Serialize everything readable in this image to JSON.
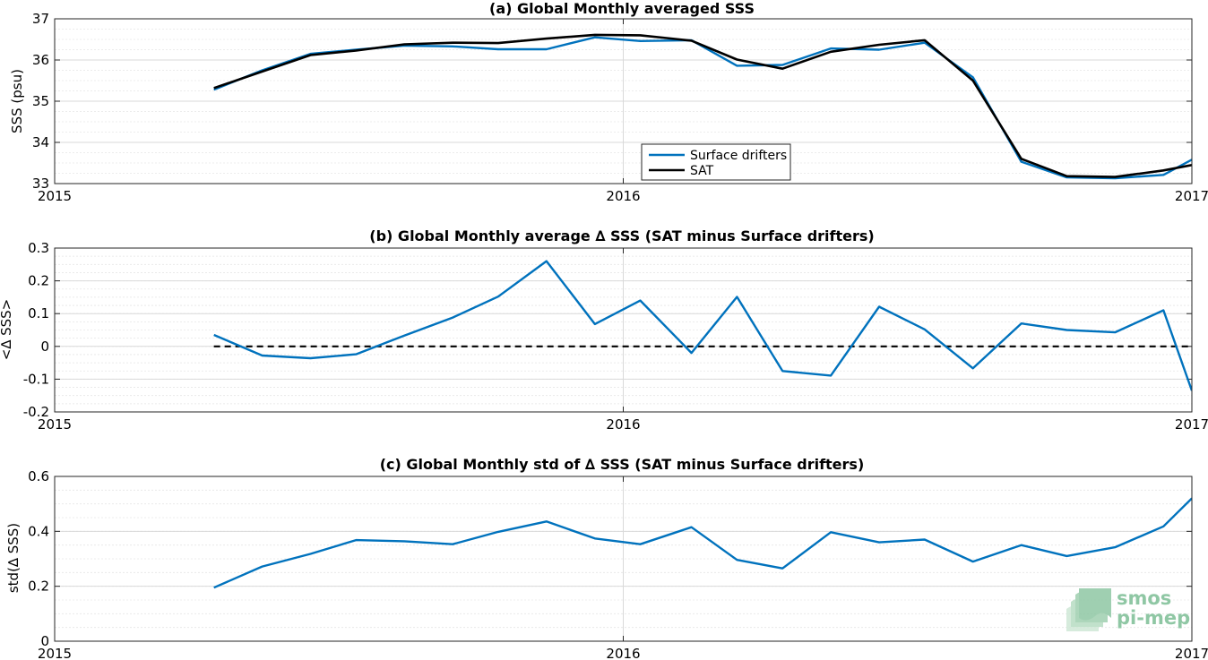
{
  "colors": {
    "series_blue": "#0072bd",
    "series_black": "#000000",
    "grid": "#d9d9d9",
    "axes": "#262626",
    "logo_green": "#8fc7a4"
  },
  "logo": {
    "line1": "smos",
    "line2": "pi-mep",
    "icon": "layered-wave-icon"
  },
  "chart_data": [
    {
      "type": "line",
      "title": "(a) Global Monthly averaged SSS",
      "ylabel": "SSS (psu)",
      "xlabel": "",
      "xlim": [
        2015,
        2017
      ],
      "ylim": [
        33,
        37
      ],
      "xticks": [
        {
          "v": 2015,
          "label": "2015"
        },
        {
          "v": 2016,
          "label": "2016"
        },
        {
          "v": 2017,
          "label": "2017"
        }
      ],
      "yticks": [
        33,
        34,
        35,
        36,
        37
      ],
      "grid": true,
      "legend": {
        "placement": "bottom-center",
        "entries": [
          "Surface drifters",
          "SAT"
        ]
      },
      "series": [
        {
          "name": "Surface drifters",
          "color": "#0072bd",
          "x": [
            2015.28,
            2015.365,
            2015.45,
            2015.53,
            2015.615,
            2015.7,
            2015.78,
            2015.865,
            2015.95,
            2016.03,
            2016.12,
            2016.2,
            2016.28,
            2016.365,
            2016.45,
            2016.53,
            2016.615,
            2016.7,
            2016.78,
            2016.865,
            2016.95,
            2017.0
          ],
          "y": [
            35.28,
            35.75,
            36.15,
            36.25,
            36.35,
            36.33,
            36.26,
            36.26,
            36.55,
            36.46,
            36.48,
            35.86,
            35.88,
            36.28,
            36.25,
            36.42,
            35.58,
            33.53,
            33.15,
            33.13,
            33.21,
            33.58
          ]
        },
        {
          "name": "SAT",
          "color": "#000000",
          "x": [
            2015.28,
            2015.365,
            2015.45,
            2015.53,
            2015.615,
            2015.7,
            2015.78,
            2015.865,
            2015.95,
            2016.03,
            2016.12,
            2016.2,
            2016.28,
            2016.365,
            2016.45,
            2016.53,
            2016.615,
            2016.7,
            2016.78,
            2016.865,
            2016.95,
            2017.0
          ],
          "y": [
            35.32,
            35.72,
            36.12,
            36.23,
            36.38,
            36.42,
            36.41,
            36.52,
            36.61,
            36.6,
            36.47,
            36.01,
            35.79,
            36.2,
            36.37,
            36.48,
            35.5,
            33.6,
            33.18,
            33.16,
            33.32,
            33.45
          ]
        }
      ]
    },
    {
      "type": "line",
      "title": "(b) Global Monthly average ∆ SSS (SAT minus Surface drifters)",
      "ylabel": "<∆ SSS>",
      "xlabel": "",
      "xlim": [
        2015,
        2017
      ],
      "ylim": [
        -0.2,
        0.3
      ],
      "xticks": [
        {
          "v": 2015,
          "label": "2015"
        },
        {
          "v": 2016,
          "label": "2016"
        },
        {
          "v": 2017,
          "label": "2017"
        }
      ],
      "yticks": [
        {
          "v": -0.2,
          "label": "-0.2"
        },
        {
          "v": -0.1,
          "label": "-0.1"
        },
        {
          "v": 0,
          "label": "0"
        },
        {
          "v": 0.1,
          "label": "0.1"
        },
        {
          "v": 0.2,
          "label": "0.2"
        },
        {
          "v": 0.3,
          "label": "0.3"
        }
      ],
      "grid": true,
      "reference_line": {
        "y": 0,
        "style": "dashed",
        "color": "#000000"
      },
      "series": [
        {
          "color": "#0072bd",
          "x": [
            2015.28,
            2015.365,
            2015.45,
            2015.53,
            2015.615,
            2015.7,
            2015.78,
            2015.865,
            2015.95,
            2016.03,
            2016.12,
            2016.2,
            2016.28,
            2016.365,
            2016.45,
            2016.53,
            2016.615,
            2016.7,
            2016.78,
            2016.865,
            2016.95,
            2017.0
          ],
          "y": [
            0.035,
            -0.028,
            -0.036,
            -0.024,
            0.033,
            0.088,
            0.152,
            0.26,
            0.068,
            0.14,
            -0.02,
            0.151,
            -0.075,
            -0.089,
            0.121,
            0.052,
            -0.067,
            0.07,
            0.05,
            0.043,
            0.11,
            -0.135
          ]
        }
      ]
    },
    {
      "type": "line",
      "title": "(c) Global Monthly std of ∆ SSS (SAT minus Surface drifters)",
      "ylabel": "std(∆ SSS)",
      "xlabel": "",
      "xlim": [
        2015,
        2017
      ],
      "ylim": [
        0,
        0.6
      ],
      "xticks": [
        {
          "v": 2015,
          "label": "2015"
        },
        {
          "v": 2016,
          "label": "2016"
        },
        {
          "v": 2017,
          "label": "2017"
        }
      ],
      "yticks": [
        {
          "v": 0,
          "label": "0"
        },
        {
          "v": 0.2,
          "label": "0.2"
        },
        {
          "v": 0.4,
          "label": "0.4"
        },
        {
          "v": 0.6,
          "label": "0.6"
        }
      ],
      "grid": true,
      "series": [
        {
          "color": "#0072bd",
          "x": [
            2015.28,
            2015.365,
            2015.45,
            2015.53,
            2015.615,
            2015.7,
            2015.78,
            2015.865,
            2015.95,
            2016.03,
            2016.12,
            2016.2,
            2016.28,
            2016.365,
            2016.45,
            2016.53,
            2016.615,
            2016.7,
            2016.78,
            2016.865,
            2016.95,
            2017.0
          ],
          "y": [
            0.195,
            0.272,
            0.318,
            0.368,
            0.364,
            0.353,
            0.398,
            0.436,
            0.374,
            0.353,
            0.415,
            0.296,
            0.265,
            0.397,
            0.36,
            0.37,
            0.29,
            0.35,
            0.31,
            0.342,
            0.418,
            0.52
          ]
        }
      ]
    }
  ]
}
